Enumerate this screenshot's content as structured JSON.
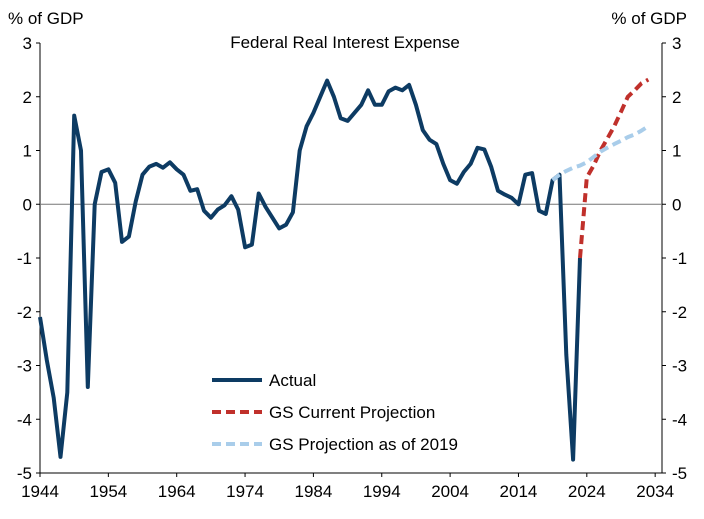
{
  "chart_data": {
    "type": "line",
    "title": "Federal Real Interest Expense",
    "ylabel_left": "% of GDP",
    "ylabel_right": "% of GDP",
    "xlim": [
      1944,
      2035
    ],
    "ylim": [
      -5,
      3
    ],
    "x_ticks": [
      1944,
      1954,
      1964,
      1974,
      1984,
      1994,
      2004,
      2014,
      2024,
      2034
    ],
    "y_ticks": [
      -5,
      -4,
      -3,
      -2,
      -1,
      0,
      1,
      2,
      3
    ],
    "zero_line": true,
    "legend_position": "bottom-center",
    "series": [
      {
        "name": "Actual",
        "style": "solid",
        "color": "#0d3b63",
        "points": [
          [
            1944,
            -2.1
          ],
          [
            1945,
            -2.9
          ],
          [
            1946,
            -3.6
          ],
          [
            1947,
            -4.7
          ],
          [
            1948,
            -3.5
          ],
          [
            1949,
            1.65
          ],
          [
            1950,
            1.0
          ],
          [
            1951,
            -3.4
          ],
          [
            1952,
            0.0
          ],
          [
            1953,
            0.6
          ],
          [
            1954,
            0.65
          ],
          [
            1955,
            0.4
          ],
          [
            1956,
            -0.7
          ],
          [
            1957,
            -0.6
          ],
          [
            1958,
            0.05
          ],
          [
            1959,
            0.55
          ],
          [
            1960,
            0.7
          ],
          [
            1961,
            0.75
          ],
          [
            1962,
            0.68
          ],
          [
            1963,
            0.78
          ],
          [
            1964,
            0.65
          ],
          [
            1965,
            0.55
          ],
          [
            1966,
            0.25
          ],
          [
            1967,
            0.28
          ],
          [
            1968,
            -0.12
          ],
          [
            1969,
            -0.25
          ],
          [
            1970,
            -0.1
          ],
          [
            1971,
            -0.02
          ],
          [
            1972,
            0.15
          ],
          [
            1973,
            -0.1
          ],
          [
            1974,
            -0.8
          ],
          [
            1975,
            -0.75
          ],
          [
            1976,
            0.2
          ],
          [
            1977,
            -0.05
          ],
          [
            1978,
            -0.25
          ],
          [
            1979,
            -0.45
          ],
          [
            1980,
            -0.38
          ],
          [
            1981,
            -0.15
          ],
          [
            1982,
            1.0
          ],
          [
            1983,
            1.45
          ],
          [
            1984,
            1.7
          ],
          [
            1985,
            2.0
          ],
          [
            1986,
            2.3
          ],
          [
            1987,
            2.0
          ],
          [
            1988,
            1.6
          ],
          [
            1989,
            1.55
          ],
          [
            1990,
            1.7
          ],
          [
            1991,
            1.85
          ],
          [
            1992,
            2.12
          ],
          [
            1993,
            1.85
          ],
          [
            1994,
            1.85
          ],
          [
            1995,
            2.1
          ],
          [
            1996,
            2.17
          ],
          [
            1997,
            2.12
          ],
          [
            1998,
            2.22
          ],
          [
            1999,
            1.85
          ],
          [
            2000,
            1.38
          ],
          [
            2001,
            1.2
          ],
          [
            2002,
            1.12
          ],
          [
            2003,
            0.75
          ],
          [
            2004,
            0.45
          ],
          [
            2005,
            0.38
          ],
          [
            2006,
            0.6
          ],
          [
            2007,
            0.75
          ],
          [
            2008,
            1.05
          ],
          [
            2009,
            1.02
          ],
          [
            2010,
            0.7
          ],
          [
            2011,
            0.25
          ],
          [
            2012,
            0.18
          ],
          [
            2013,
            0.12
          ],
          [
            2014,
            0.0
          ],
          [
            2015,
            0.55
          ],
          [
            2016,
            0.58
          ],
          [
            2017,
            -0.12
          ],
          [
            2018,
            -0.18
          ],
          [
            2019,
            0.45
          ],
          [
            2020,
            0.55
          ],
          [
            2021,
            -2.8
          ],
          [
            2022,
            -4.75
          ],
          [
            2023,
            -1.0
          ]
        ]
      },
      {
        "name": "GS Current Projection",
        "style": "dashed",
        "color": "#c0302b",
        "points": [
          [
            2023,
            -1.0
          ],
          [
            2024,
            0.5
          ],
          [
            2025,
            0.72
          ],
          [
            2026,
            1.0
          ],
          [
            2027,
            1.22
          ],
          [
            2028,
            1.45
          ],
          [
            2029,
            1.72
          ],
          [
            2030,
            2.0
          ],
          [
            2031,
            2.12
          ],
          [
            2032,
            2.25
          ],
          [
            2033,
            2.32
          ]
        ]
      },
      {
        "name": "GS Projection as of 2019",
        "style": "dashed",
        "color": "#a9cdea",
        "points": [
          [
            2019,
            0.45
          ],
          [
            2020,
            0.55
          ],
          [
            2021,
            0.62
          ],
          [
            2022,
            0.68
          ],
          [
            2023,
            0.72
          ],
          [
            2024,
            0.78
          ],
          [
            2025,
            0.88
          ],
          [
            2026,
            0.98
          ],
          [
            2027,
            1.05
          ],
          [
            2028,
            1.12
          ],
          [
            2029,
            1.18
          ],
          [
            2030,
            1.25
          ],
          [
            2031,
            1.3
          ],
          [
            2032,
            1.37
          ],
          [
            2033,
            1.45
          ]
        ]
      }
    ]
  }
}
